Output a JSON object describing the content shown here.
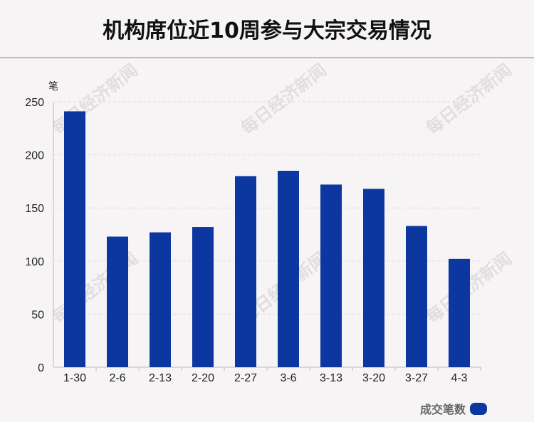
{
  "title": "机构席位近10周参与大宗交易情况",
  "watermark": "每日经济新闻",
  "colors": {
    "bar": "#0d37a0",
    "grid": "#e0dcdc",
    "axis": "#bbbbbb",
    "text": "#222222"
  },
  "chart_data": {
    "type": "bar",
    "title": "机构席位近10周参与大宗交易情况",
    "ylabel": "笔",
    "xlabel": "",
    "ylim": [
      0,
      250
    ],
    "yticks": [
      0,
      50,
      100,
      150,
      200,
      250
    ],
    "categories": [
      "1-30",
      "2-6",
      "2-13",
      "2-20",
      "2-27",
      "3-6",
      "3-13",
      "3-20",
      "3-27",
      "4-3"
    ],
    "series": [
      {
        "name": "成交笔数",
        "values": [
          241,
          123,
          127,
          132,
          180,
          185,
          172,
          168,
          133,
          102
        ]
      }
    ],
    "grid": true,
    "legend": "bottom-right"
  }
}
